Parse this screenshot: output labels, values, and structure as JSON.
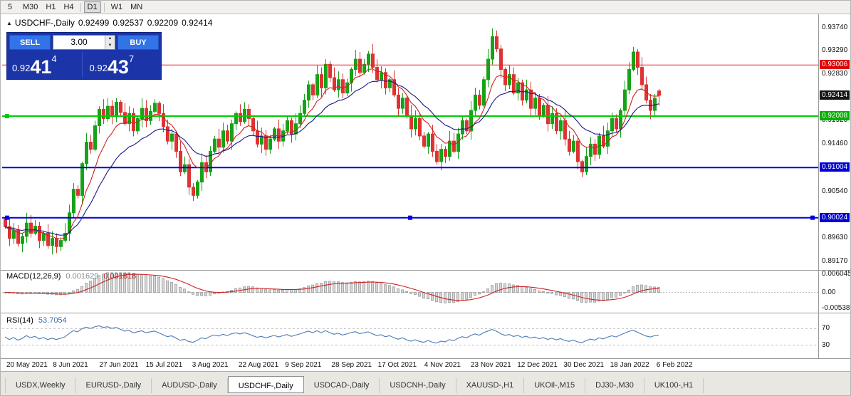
{
  "colors": {
    "bull": "#17a317",
    "bear": "#dd3333",
    "ma_fast": "#cc2222",
    "ma_slow": "#19198c",
    "rsi_line": "#4a7ab5",
    "macd_hist_fill": "#d6d6d6",
    "macd_hist_stroke": "#8f8f8f",
    "macd_signal": "#cc2222"
  },
  "toolbar": {
    "timeframes": [
      "5",
      "M30",
      "H1",
      "H4",
      "D1",
      "W1",
      "MN"
    ],
    "active": "D1"
  },
  "chart_header": {
    "collapse_icon": "▲",
    "symbol": "USDCHF-,Daily",
    "open": "0.92499",
    "high": "0.92537",
    "low": "0.92209",
    "close": "0.92414"
  },
  "trade_panel": {
    "sell_label": "SELL",
    "buy_label": "BUY",
    "volume": "3.00",
    "sell_price": {
      "prefix": "0.92",
      "big": "41",
      "sup": "4"
    },
    "buy_price": {
      "prefix": "0.92",
      "big": "43",
      "sup": "7"
    }
  },
  "price_axis": {
    "ticks": [
      "0.93740",
      "0.93290",
      "0.92830",
      "0.92380",
      "0.91920",
      "0.91460",
      "0.90540",
      "0.89630",
      "0.89170"
    ],
    "badges": [
      {
        "label": "0.93006",
        "price": 0.93006,
        "color": "red"
      },
      {
        "label": "0.92414",
        "price": 0.92414,
        "color": "current"
      },
      {
        "label": "0.92008",
        "price": 0.92008,
        "color": "green"
      },
      {
        "label": "0.91004",
        "price": 0.91004,
        "color": "blue"
      },
      {
        "label": "0.90024",
        "price": 0.90024,
        "color": "blue"
      }
    ]
  },
  "hlines": [
    {
      "price": 0.93006,
      "color": "#ee2222",
      "width": 1,
      "handles": []
    },
    {
      "price": 0.92008,
      "color": "#00cc00",
      "width": 2,
      "handles": [
        "left"
      ]
    },
    {
      "price": 0.91004,
      "color": "#0000e0",
      "width": 2,
      "handles": []
    },
    {
      "price": 0.90024,
      "color": "#0000e0",
      "width": 2,
      "handles": [
        "left",
        "center",
        "right"
      ]
    }
  ],
  "chart_data": {
    "type": "candlestick",
    "symbol": "USDCHF",
    "timeframe": "Daily",
    "title": "USDCHF-,Daily",
    "y_range": [
      0.8906,
      0.939
    ],
    "first_open": 0.9,
    "ohlc_current": [
      0.92499,
      0.92537,
      0.92209,
      0.92414
    ],
    "closes": [
      0.8985,
      0.8962,
      0.8978,
      0.8952,
      0.8966,
      0.8992,
      0.8972,
      0.8986,
      0.8958,
      0.8972,
      0.8948,
      0.8962,
      0.8946,
      0.8958,
      0.8972,
      0.9012,
      0.9058,
      0.9046,
      0.9108,
      0.915,
      0.9136,
      0.9182,
      0.9214,
      0.9196,
      0.922,
      0.9202,
      0.9228,
      0.9208,
      0.9186,
      0.9206,
      0.9172,
      0.9196,
      0.9216,
      0.9192,
      0.921,
      0.9226,
      0.9206,
      0.918,
      0.9152,
      0.9166,
      0.9132,
      0.9092,
      0.9106,
      0.9062,
      0.9046,
      0.9072,
      0.911,
      0.9092,
      0.9132,
      0.9156,
      0.914,
      0.9172,
      0.9152,
      0.9186,
      0.9206,
      0.919,
      0.9214,
      0.9196,
      0.9172,
      0.9146,
      0.9162,
      0.9136,
      0.9156,
      0.9176,
      0.9152,
      0.9172,
      0.9192,
      0.9166,
      0.9186,
      0.9206,
      0.9232,
      0.9262,
      0.9242,
      0.9282,
      0.9256,
      0.9302,
      0.9276,
      0.9252,
      0.9272,
      0.9246,
      0.9266,
      0.9292,
      0.9312,
      0.9286,
      0.9302,
      0.9322,
      0.9296,
      0.9272,
      0.9286,
      0.9256,
      0.9272,
      0.9242,
      0.9216,
      0.9236,
      0.9202,
      0.9176,
      0.9196,
      0.9162,
      0.9142,
      0.9166,
      0.9132,
      0.9112,
      0.9136,
      0.9122,
      0.9152,
      0.9132,
      0.9166,
      0.9192,
      0.9172,
      0.9212,
      0.9242,
      0.9222,
      0.9272,
      0.9312,
      0.9356,
      0.9332,
      0.9292,
      0.9262,
      0.9282,
      0.9246,
      0.9266,
      0.9232,
      0.9252,
      0.9216,
      0.9236,
      0.9202,
      0.9222,
      0.9186,
      0.9206,
      0.9172,
      0.9192,
      0.9156,
      0.9132,
      0.9152,
      0.9112,
      0.9092,
      0.9122,
      0.9146,
      0.9126,
      0.9162,
      0.9142,
      0.9172,
      0.9196,
      0.9176,
      0.9212,
      0.9252,
      0.9292,
      0.9326,
      0.9296,
      0.9262,
      0.9232,
      0.9212,
      0.9236,
      0.92414
    ],
    "indicators": {
      "ma_fast_period": 8,
      "ma_slow_period": 18,
      "macd": [
        12,
        26,
        9
      ],
      "rsi_period": 14
    },
    "hline_prices": [
      0.93006,
      0.92008,
      0.91004,
      0.90024
    ]
  },
  "macd_panel": {
    "title": "MACD(12,26,9)",
    "main_value": "0.001629",
    "signal_value": "0.001818",
    "axis": [
      "0.006045",
      "0.00",
      "-0.005383"
    ],
    "range": [
      -0.005383,
      0.006045
    ]
  },
  "rsi_panel": {
    "title": "RSI(14)",
    "value": "53.7054",
    "levels": [
      70,
      30
    ],
    "axis": [
      "70",
      "30"
    ]
  },
  "x_axis": {
    "labels": [
      "20 May 2021",
      "8 Jun 2021",
      "27 Jun 2021",
      "15 Jul 2021",
      "3 Aug 2021",
      "22 Aug 2021",
      "9 Sep 2021",
      "28 Sep 2021",
      "17 Oct 2021",
      "4 Nov 2021",
      "23 Nov 2021",
      "12 Dec 2021",
      "30 Dec 2021",
      "18 Jan 2022",
      "6 Feb 2022"
    ]
  },
  "bottom_tabs": {
    "active_index": 3,
    "tabs": [
      "USDX,Weekly",
      "EURUSD-,Daily",
      "AUDUSD-,Daily",
      "USDCHF-,Daily",
      "USDCAD-,Daily",
      "USDCNH-,Daily",
      "XAUUSD-,H1",
      "UKOil-,M15",
      "DJ30-,M30",
      "UK100-,H1"
    ]
  }
}
